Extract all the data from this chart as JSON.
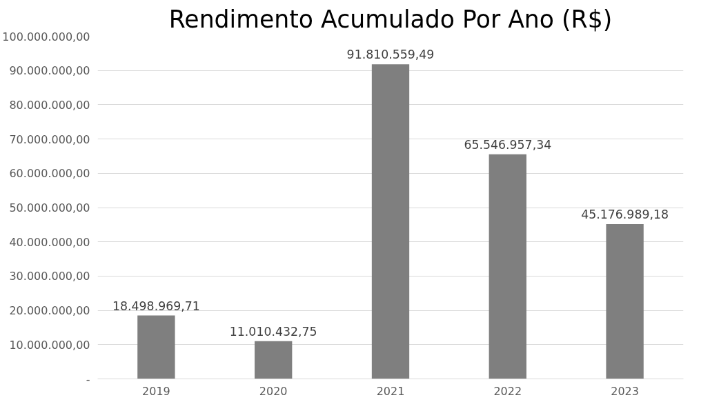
{
  "chart_data": {
    "type": "bar",
    "title": "Rendimento Acumulado Por Ano (R$)",
    "categories": [
      "2019",
      "2020",
      "2021",
      "2022",
      "2023"
    ],
    "values": [
      18498969.71,
      11010432.75,
      91810559.49,
      65546957.34,
      45176989.18
    ],
    "value_labels": [
      "18.498.969,71",
      "11.010.432,75",
      "91.810.559,49",
      "65.546.957,34",
      "45.176.989,18"
    ],
    "color": "#7f7f7f",
    "ylim": [
      0,
      100000000
    ],
    "yticks": [
      {
        "value": 0,
        "label": "-"
      },
      {
        "value": 10000000,
        "label": "10.000.000,00"
      },
      {
        "value": 20000000,
        "label": "20.000.000,00"
      },
      {
        "value": 30000000,
        "label": "30.000.000,00"
      },
      {
        "value": 40000000,
        "label": "40.000.000,00"
      },
      {
        "value": 50000000,
        "label": "50.000.000,00"
      },
      {
        "value": 60000000,
        "label": "60.000.000,00"
      },
      {
        "value": 70000000,
        "label": "70.000.000,00"
      },
      {
        "value": 80000000,
        "label": "80.000.000,00"
      },
      {
        "value": 90000000,
        "label": "90.000.000,00"
      },
      {
        "value": 100000000,
        "label": "100.000.000,00"
      }
    ],
    "grid": "y"
  }
}
